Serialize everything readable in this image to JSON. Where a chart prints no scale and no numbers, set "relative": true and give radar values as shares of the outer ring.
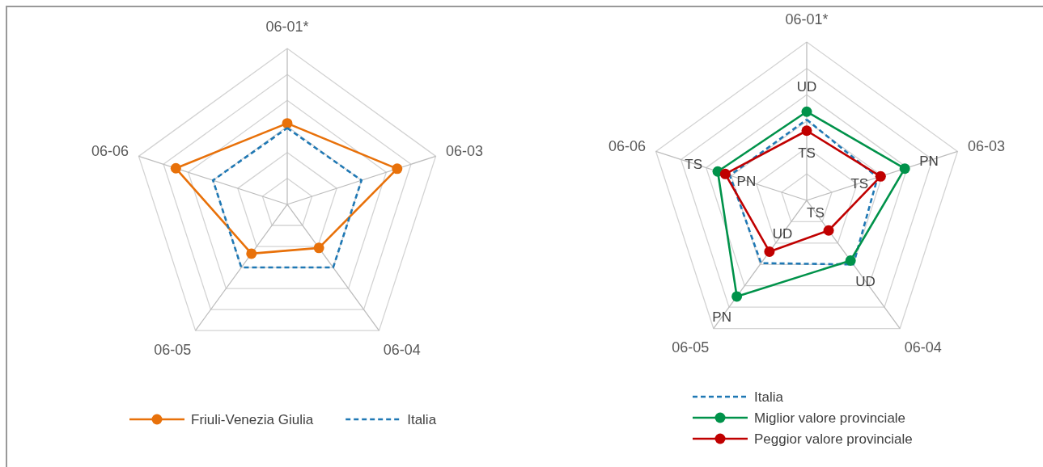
{
  "chart_data": [
    {
      "type": "radar",
      "relative": true,
      "categories": [
        "06-01*",
        "06-03",
        "06-04",
        "06-05",
        "06-06"
      ],
      "legend": "bottom",
      "series": [
        {
          "name": "Friuli-Venezia Giulia",
          "color": "#e8710a",
          "values": [
            0.52,
            0.74,
            0.345,
            0.39,
            0.75
          ],
          "marker": "circle",
          "line_style": "solid"
        },
        {
          "name": "Italia",
          "color": "#1f78b4",
          "values": [
            0.49,
            0.5,
            0.5,
            0.5,
            0.5
          ],
          "marker": "none",
          "line_style": "dashed"
        }
      ]
    },
    {
      "type": "radar",
      "relative": true,
      "categories": [
        "06-01*",
        "06-03",
        "06-04",
        "06-05",
        "06-06"
      ],
      "legend": "bottom",
      "series": [
        {
          "name": "Italia",
          "color": "#1f78b4",
          "values": [
            0.51,
            0.47,
            0.5,
            0.49,
            0.51
          ],
          "marker": "none",
          "line_style": "dashed"
        },
        {
          "name": "Miglior valore provinciale",
          "color": "#00924a",
          "values": [
            0.56,
            0.65,
            0.47,
            0.75,
            0.59
          ],
          "marker": "circle",
          "line_style": "solid"
        },
        {
          "name": "Peggior valore provinciale",
          "color": "#c00000",
          "values": [
            0.44,
            0.49,
            0.235,
            0.4,
            0.54
          ],
          "marker": "circle",
          "line_style": "solid"
        }
      ],
      "annotations": [
        {
          "text": "UD",
          "x": "06-01*"
        },
        {
          "text": "TS",
          "x": "06-01*"
        },
        {
          "text": "PN",
          "x": "06-03"
        },
        {
          "text": "TS",
          "x": "06-03"
        },
        {
          "text": "UD",
          "x": "06-04"
        },
        {
          "text": "TS",
          "x": "06-04"
        },
        {
          "text": "PN",
          "x": "06-05"
        },
        {
          "text": "UD",
          "x": "06-05"
        },
        {
          "text": "TS",
          "x": "06-06"
        },
        {
          "text": "PN",
          "x": "06-06"
        }
      ]
    }
  ]
}
